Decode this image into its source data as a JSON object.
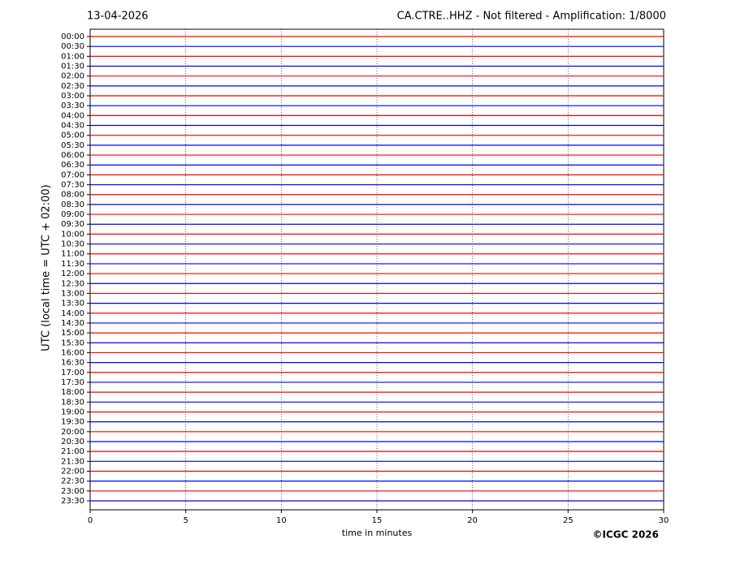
{
  "chart_data": {
    "type": "helicorder",
    "title_left": "13-04-2026",
    "title": "CA.CTRE..HHZ - Not filtered - Amplification: 1/8000",
    "ylabel": "UTC (local time = UTC + 02:00)",
    "xlabel": "time in minutes",
    "credit": "©ICGC 2026",
    "categories": [
      "00:00",
      "00:30",
      "01:00",
      "01:30",
      "02:00",
      "02:30",
      "03:00",
      "03:30",
      "04:00",
      "04:30",
      "05:00",
      "05:30",
      "06:00",
      "06:30",
      "07:00",
      "07:30",
      "08:00",
      "08:30",
      "09:00",
      "09:30",
      "10:00",
      "10:30",
      "11:00",
      "11:30",
      "12:00",
      "12:30",
      "13:00",
      "13:30",
      "14:00",
      "14:30",
      "15:00",
      "15:30",
      "16:00",
      "16:30",
      "17:00",
      "17:30",
      "18:00",
      "18:30",
      "19:00",
      "19:30",
      "20:00",
      "20:30",
      "21:00",
      "21:30",
      "22:00",
      "22:30",
      "23:00",
      "23:30"
    ],
    "colors": [
      "#ff0000",
      "#0000ff"
    ],
    "xlim": [
      0,
      30
    ],
    "xticks": [
      0,
      5,
      10,
      15,
      20,
      25,
      30
    ],
    "grid": true
  }
}
